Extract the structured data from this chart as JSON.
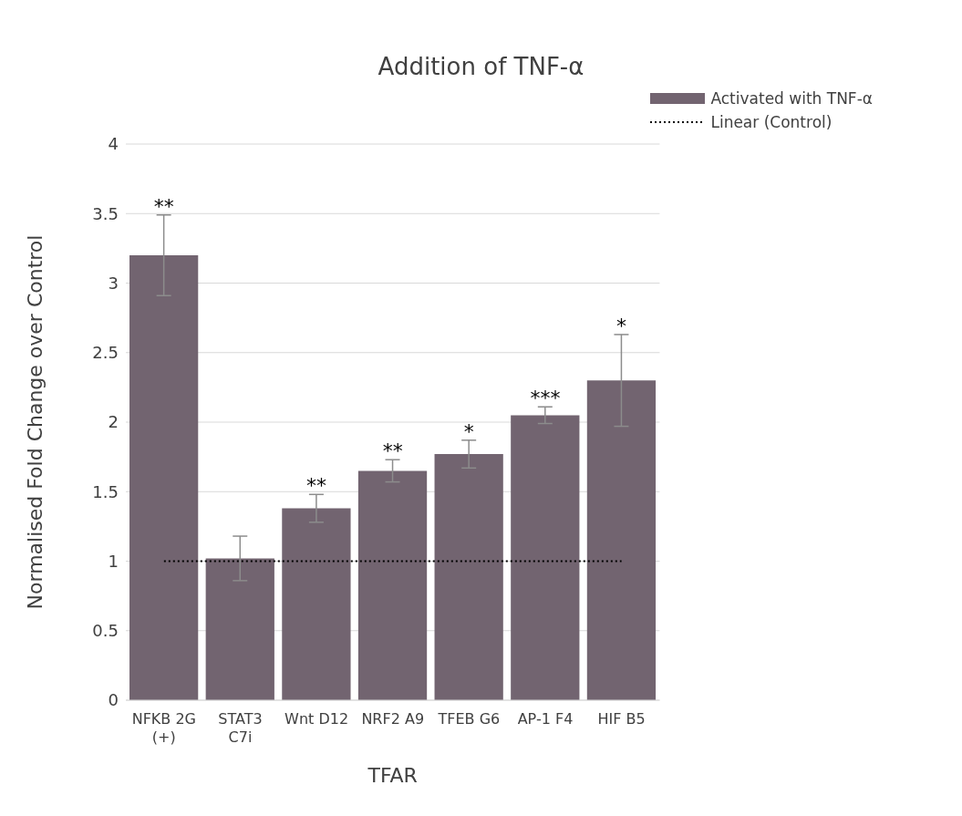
{
  "chart_data": {
    "type": "bar",
    "title": "Addition of TNF-α",
    "xlabel": "TFAR",
    "ylabel": "Normalised Fold Change over Control",
    "categories": [
      "NFKB 2G (+)",
      "STAT3 C7i",
      "Wnt D12",
      "NRF2 A9",
      "TFEB G6",
      "AP-1 F4",
      "HIF B5"
    ],
    "series": [
      {
        "name": "Activated with TNF-α",
        "color": "#726470",
        "values": [
          3.2,
          1.02,
          1.38,
          1.65,
          1.77,
          2.05,
          2.3
        ],
        "errors": [
          0.29,
          0.16,
          0.1,
          0.08,
          0.1,
          0.06,
          0.33
        ]
      },
      {
        "name": "Linear (Control)",
        "type": "line",
        "color": "#000000",
        "line_style": "dotted",
        "values": [
          1,
          1,
          1,
          1,
          1,
          1,
          1
        ]
      }
    ],
    "ylim": [
      0,
      4
    ],
    "yticks": [
      0,
      0.5,
      1,
      1.5,
      2,
      2.5,
      3,
      3.5,
      4
    ],
    "grid": "y",
    "legend": "top right",
    "annotations": [
      {
        "text": "**",
        "x": "NFKB 2G (+)",
        "y": 3.49
      },
      {
        "text": "**",
        "x": "Wnt D12",
        "y": 1.48
      },
      {
        "text": "**",
        "x": "NRF2 A9",
        "y": 1.73
      },
      {
        "text": "*",
        "x": "TFEB G6",
        "y": 1.87
      },
      {
        "text": "***",
        "x": "AP-1 F4",
        "y": 2.11
      },
      {
        "text": "*",
        "x": "HIF B5",
        "y": 2.63
      }
    ]
  }
}
